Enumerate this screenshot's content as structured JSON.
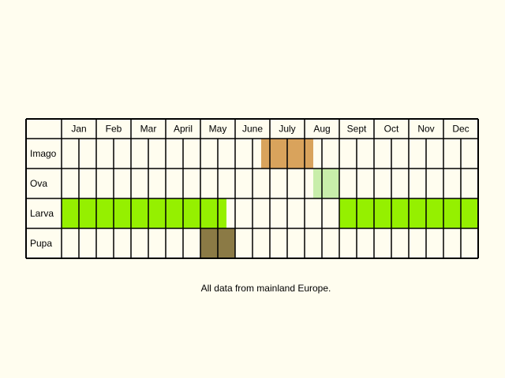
{
  "chart_data": {
    "type": "table",
    "months": [
      "Jan",
      "Feb",
      "Mar",
      "April",
      "May",
      "June",
      "July",
      "Aug",
      "Sept",
      "Oct",
      "Nov",
      "Dec"
    ],
    "stages": [
      {
        "name": "Imago",
        "color": "#d9a35c",
        "periods": [
          [
            11.5,
            14.5
          ]
        ]
      },
      {
        "name": "Ova",
        "color": "#c8eeaa",
        "periods": [
          [
            14.5,
            16
          ]
        ]
      },
      {
        "name": "Larva",
        "color": "#95f000",
        "periods": [
          [
            0,
            9.5
          ],
          [
            16,
            24
          ]
        ]
      },
      {
        "name": "Pupa",
        "color": "#8b7a45",
        "periods": [
          [
            8,
            10
          ]
        ]
      }
    ],
    "cells_per_month": 2
  },
  "caption": "All data from mainland Europe."
}
